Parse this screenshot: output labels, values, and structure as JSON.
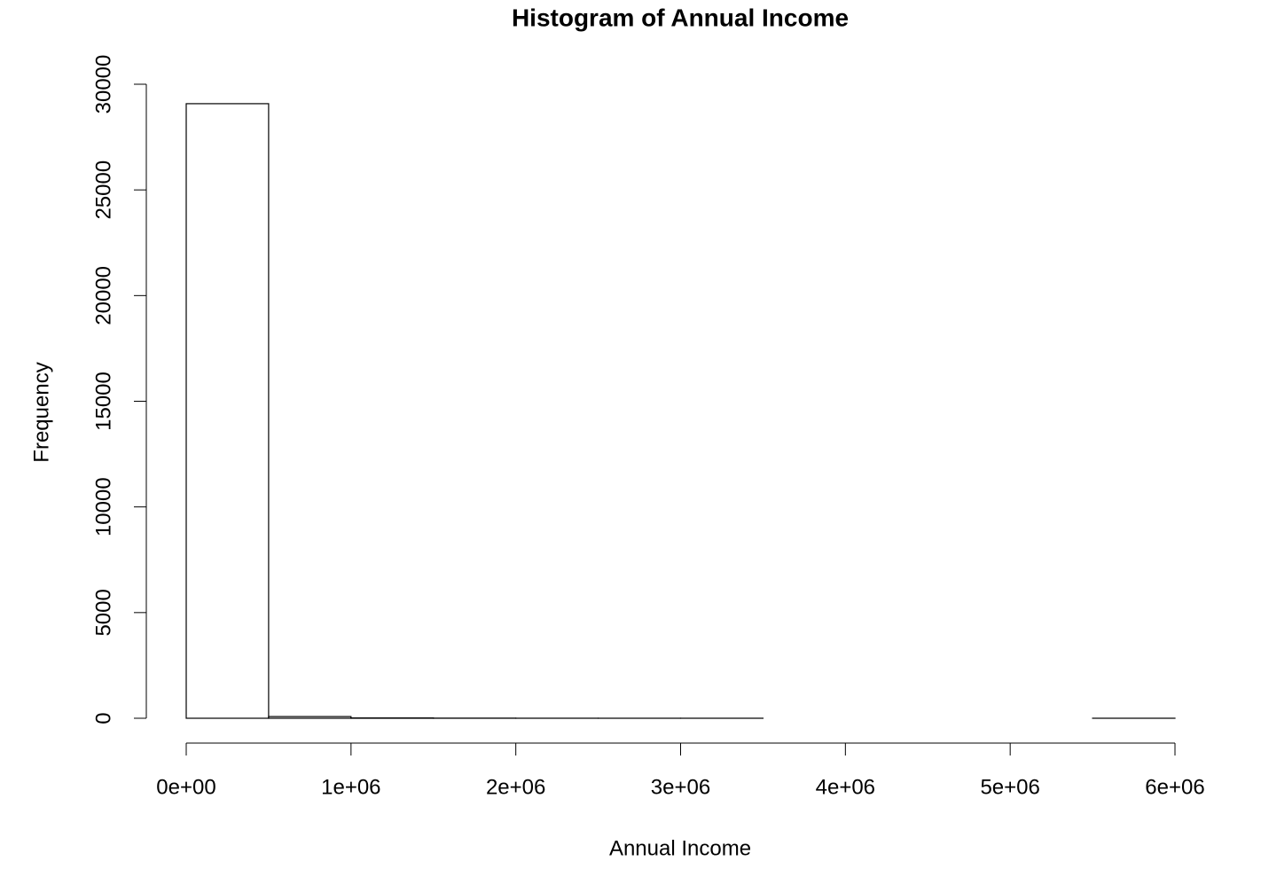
{
  "chart_data": {
    "type": "histogram",
    "title": "Histogram of Annual Income",
    "x_label": "Annual Income",
    "y_label": "Frequency",
    "bins": [
      0,
      500000,
      1000000,
      1500000,
      2000000,
      2500000,
      3000000,
      3500000,
      4000000,
      4500000,
      5000000,
      5500000,
      6000000
    ],
    "values": [
      29080,
      80,
      15,
      6,
      2,
      1,
      1,
      0,
      0,
      0,
      0,
      1
    ],
    "color": "#ffffff",
    "edgecolor": "#000000",
    "xlim": [
      0,
      6000000
    ],
    "xticks": [
      {
        "value": 0,
        "label": "0e+00"
      },
      {
        "value": 1000000,
        "label": "1e+06"
      },
      {
        "value": 2000000,
        "label": "2e+06"
      },
      {
        "value": 3000000,
        "label": "3e+06"
      },
      {
        "value": 4000000,
        "label": "4e+06"
      },
      {
        "value": 5000000,
        "label": "5e+06"
      },
      {
        "value": 6000000,
        "label": "6e+06"
      }
    ],
    "ylim": [
      0,
      30000
    ],
    "yticks": [
      0,
      5000,
      10000,
      15000,
      20000,
      25000,
      30000
    ],
    "grid": false
  }
}
